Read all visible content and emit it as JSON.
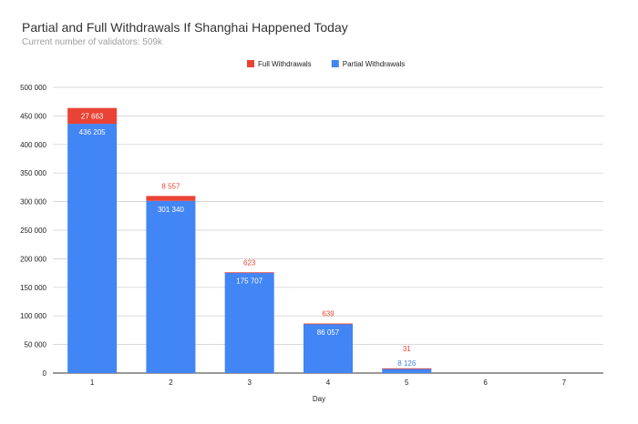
{
  "chart_data": {
    "type": "bar",
    "stacked": true,
    "title": "Partial and Full Withdrawals If Shanghai Happened Today",
    "subtitle": "Current number of validators: 509k",
    "xlabel": "Day",
    "ylabel": "",
    "categories": [
      "1",
      "2",
      "3",
      "4",
      "5",
      "6",
      "7"
    ],
    "series": [
      {
        "name": "Partial Withdrawals",
        "color": "#4285f4",
        "values": [
          436205,
          301340,
          175707,
          86057,
          8126,
          0,
          0
        ],
        "labels": [
          "436 205",
          "301 340",
          "175 707",
          "86 057",
          "8 126",
          "",
          ""
        ]
      },
      {
        "name": "Full Withdrawals",
        "color": "#ea4335",
        "values": [
          27663,
          8557,
          623,
          639,
          31,
          0,
          0
        ],
        "labels": [
          "27 663",
          "8 557",
          "623",
          "639",
          "31",
          "",
          ""
        ]
      }
    ],
    "legend": {
      "position": "top-center",
      "order": [
        "Full Withdrawals",
        "Partial Withdrawals"
      ]
    },
    "ylim": [
      0,
      500000
    ],
    "yticks": [
      0,
      50000,
      100000,
      150000,
      200000,
      250000,
      300000,
      350000,
      400000,
      450000,
      500000
    ],
    "ytick_labels": [
      "0",
      "50 000",
      "100 000",
      "150 000",
      "200 000",
      "250 000",
      "300 000",
      "350 000",
      "400 000",
      "450 000",
      "500 000"
    ],
    "grid": true
  }
}
